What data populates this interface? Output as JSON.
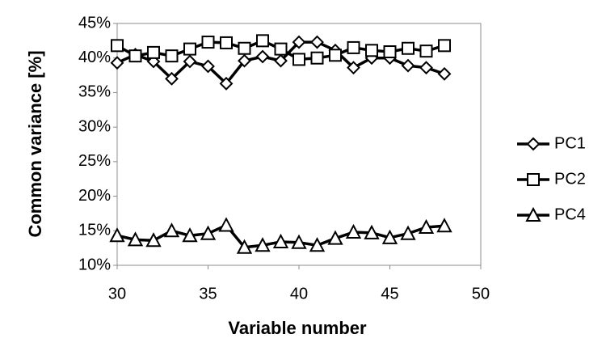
{
  "chart_data": {
    "type": "line",
    "x_label": "Variable number",
    "y_label": "Common variance [%]",
    "x": [
      30,
      31,
      32,
      33,
      34,
      35,
      36,
      37,
      38,
      39,
      40,
      41,
      42,
      43,
      44,
      45,
      46,
      47,
      48
    ],
    "series": [
      {
        "name": "PC1",
        "color": "#000000",
        "marker": "diamond",
        "values": [
          39.3,
          40.5,
          39.5,
          37.0,
          39.5,
          38.8,
          36.3,
          39.6,
          40.2,
          39.6,
          42.3,
          42.3,
          41.1,
          38.6,
          40.0,
          40.0,
          38.9,
          38.6,
          37.7
        ]
      },
      {
        "name": "PC2",
        "color": "#000000",
        "marker": "square",
        "values": [
          41.8,
          40.3,
          40.8,
          40.3,
          41.3,
          42.3,
          42.2,
          41.4,
          42.5,
          41.3,
          39.8,
          40.0,
          40.4,
          41.5,
          41.1,
          40.9,
          41.4,
          41.0,
          41.8
        ]
      },
      {
        "name": "PC4",
        "color": "#000000",
        "marker": "triangle",
        "values": [
          14.3,
          13.7,
          13.6,
          15.0,
          14.3,
          14.6,
          15.8,
          12.6,
          12.9,
          13.4,
          13.3,
          12.9,
          13.9,
          14.8,
          14.7,
          14.0,
          14.6,
          15.5,
          15.7
        ]
      }
    ],
    "xlim": [
      30,
      50
    ],
    "xticks": [
      30,
      35,
      40,
      45,
      50
    ],
    "ylim": [
      10,
      45
    ],
    "yticks": [
      {
        "value": 10,
        "label": "10%"
      },
      {
        "value": 15,
        "label": "15%"
      },
      {
        "value": 20,
        "label": "20%"
      },
      {
        "value": 25,
        "label": "25%"
      },
      {
        "value": 30,
        "label": "30%"
      },
      {
        "value": 35,
        "label": "35%"
      },
      {
        "value": 40,
        "label": "40%"
      },
      {
        "value": 45,
        "label": "45%"
      }
    ],
    "grid": false,
    "legend": "right"
  }
}
